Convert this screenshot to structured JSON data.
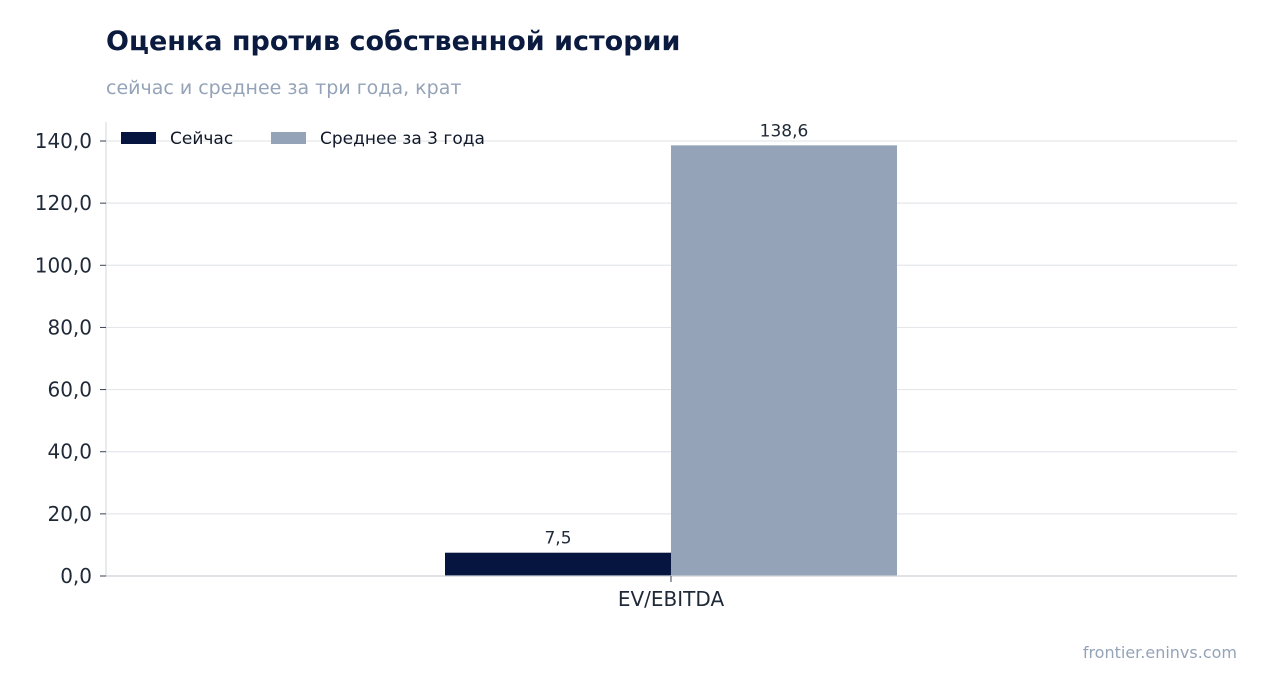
{
  "source": "frontier.eninvs.com",
  "colors": {
    "now": "#06153f",
    "avg": "#94a3b8",
    "grid": "#e5e7eb",
    "axis": "#d1d5db"
  },
  "chart_data": {
    "type": "bar",
    "title": "Оценка против собственной истории",
    "subtitle": "сейчас и среднее за три года, крат",
    "xlabel": "",
    "ylabel": "",
    "categories": [
      "EV/EBITDA"
    ],
    "series": [
      {
        "name": "Сейчас",
        "values": [
          7.5
        ],
        "labels": [
          "7,5"
        ],
        "color": "#06153f"
      },
      {
        "name": "Среднее за 3 года",
        "values": [
          138.6
        ],
        "labels": [
          "138,6"
        ],
        "color": "#94a3b8"
      }
    ],
    "ylim": [
      0,
      140
    ],
    "yticks": [
      0,
      20,
      40,
      60,
      80,
      100,
      120,
      140
    ],
    "ytick_labels": [
      "0,0",
      "20,0",
      "40,0",
      "60,0",
      "80,0",
      "100,0",
      "120,0",
      "140,0"
    ],
    "grid": true,
    "legend": "top-left"
  }
}
